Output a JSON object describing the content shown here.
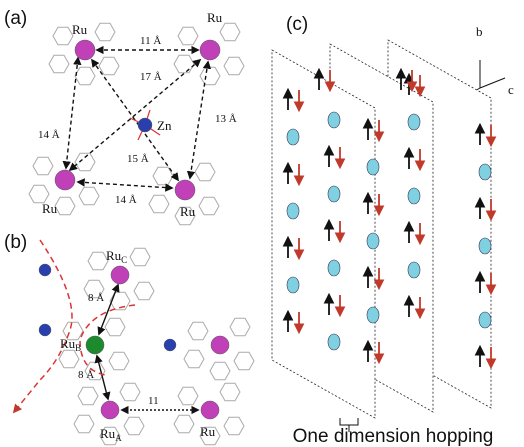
{
  "panel_a": {
    "label": "(a)",
    "atoms": [
      "Ru",
      "Ru",
      "Zn",
      "Ru",
      "Ru"
    ],
    "distances": [
      "11 Å",
      "17 Å",
      "14 Å",
      "13 Å",
      "15 Å",
      "14 Å"
    ]
  },
  "panel_b": {
    "label": "(b)",
    "atoms": [
      {
        "base": "Ru",
        "sub": "C"
      },
      {
        "base": "Ru",
        "sub": "B"
      },
      {
        "base": "Ru",
        "sub": "A"
      },
      {
        "base": "Ru"
      }
    ],
    "distances": [
      "8 Å",
      "8 Å",
      "11"
    ]
  },
  "panel_c": {
    "label": "(c)",
    "axes": [
      "b",
      "c"
    ],
    "caption": "One dimension hopping"
  }
}
